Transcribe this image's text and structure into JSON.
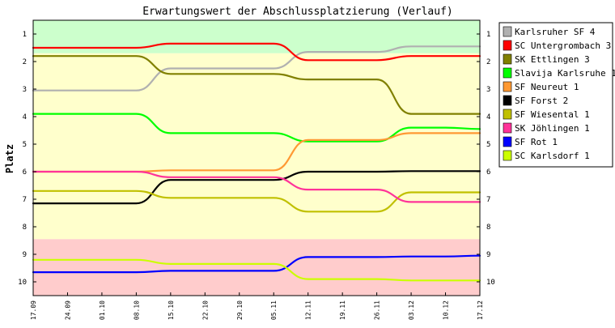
{
  "chart_data": {
    "type": "line",
    "title": "Erwartungswert der Abschlussplatzierung (Verlauf)",
    "ylabel": "Platz",
    "xlabel": "",
    "ylim": [
      10.5,
      0.5
    ],
    "y_inverted": true,
    "y_ticks": [
      "1",
      "2",
      "3",
      "4",
      "5",
      "6",
      "7",
      "8",
      "9",
      "10"
    ],
    "x": [
      "17.09",
      "24.09",
      "01.10",
      "08.10",
      "15.10",
      "22.10",
      "29.10",
      "05.11",
      "12.11",
      "19.11",
      "26.11",
      "03.12",
      "10.12",
      "17.12"
    ],
    "bands": [
      {
        "from": 0.5,
        "to": 1.7,
        "color": "#ccffcc"
      },
      {
        "from": 1.7,
        "to": 8.45,
        "color": "#ffffcc"
      },
      {
        "from": 8.45,
        "to": 10.5,
        "color": "#ffcccc"
      }
    ],
    "legend_position": "right",
    "series": [
      {
        "name": "Karlsruher SF 4",
        "color": "#b0b0b0",
        "values": [
          3.05,
          3.05,
          3.05,
          3.05,
          2.25,
          2.25,
          2.25,
          2.25,
          1.65,
          1.65,
          1.65,
          1.45,
          1.45,
          1.45
        ]
      },
      {
        "name": "SC Untergrombach 3",
        "color": "#ff0000",
        "values": [
          1.5,
          1.5,
          1.5,
          1.5,
          1.35,
          1.35,
          1.35,
          1.35,
          1.95,
          1.95,
          1.95,
          1.8,
          1.8,
          1.8
        ]
      },
      {
        "name": "SK Ettlingen 3",
        "color": "#808000",
        "values": [
          1.8,
          1.8,
          1.8,
          1.8,
          2.45,
          2.45,
          2.45,
          2.45,
          2.65,
          2.65,
          2.65,
          3.9,
          3.9,
          3.9
        ]
      },
      {
        "name": "Slavija Karlsruhe 1",
        "color": "#00ff00",
        "values": [
          3.9,
          3.9,
          3.9,
          3.9,
          4.6,
          4.6,
          4.6,
          4.6,
          4.9,
          4.9,
          4.9,
          4.4,
          4.4,
          4.45
        ]
      },
      {
        "name": "SF Neureut 1",
        "color": "#ff9933",
        "values": [
          6.0,
          6.0,
          6.0,
          6.0,
          5.95,
          5.95,
          5.95,
          5.95,
          4.85,
          4.85,
          4.85,
          4.6,
          4.6,
          4.6
        ]
      },
      {
        "name": "SF Forst 2",
        "color": "#000000",
        "values": [
          7.15,
          7.15,
          7.15,
          7.15,
          6.3,
          6.3,
          6.3,
          6.3,
          6.0,
          6.0,
          6.0,
          5.98,
          5.98,
          5.98
        ]
      },
      {
        "name": "SF Wiesental 1",
        "color": "#c0c000",
        "values": [
          6.7,
          6.7,
          6.7,
          6.7,
          6.95,
          6.95,
          6.95,
          6.95,
          7.45,
          7.45,
          7.45,
          6.75,
          6.75,
          6.75
        ]
      },
      {
        "name": "SK Jöhlingen 1",
        "color": "#ff3399",
        "values": [
          6.0,
          6.0,
          6.0,
          6.0,
          6.2,
          6.2,
          6.2,
          6.2,
          6.65,
          6.65,
          6.65,
          7.1,
          7.1,
          7.1
        ]
      },
      {
        "name": "SF Rot 1",
        "color": "#0000ff",
        "values": [
          9.65,
          9.65,
          9.65,
          9.65,
          9.6,
          9.6,
          9.6,
          9.6,
          9.1,
          9.1,
          9.1,
          9.08,
          9.08,
          9.05
        ]
      },
      {
        "name": "SC Karlsdorf 1",
        "color": "#ccff00",
        "values": [
          9.2,
          9.2,
          9.2,
          9.2,
          9.35,
          9.35,
          9.35,
          9.35,
          9.9,
          9.9,
          9.9,
          9.95,
          9.95,
          9.95
        ]
      }
    ]
  }
}
